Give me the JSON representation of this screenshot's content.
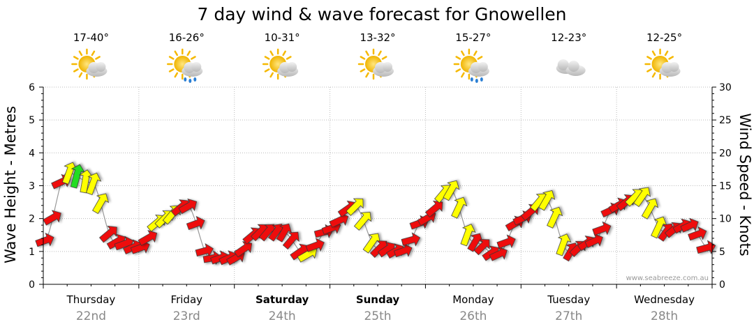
{
  "chart_data": {
    "type": "line",
    "title": "7 day wind & wave forecast for Gnowellen",
    "ylabel": "Wave Height - Metres",
    "y2label": "Wind Speed - Knots",
    "ylim": [
      0,
      6
    ],
    "y2lim": [
      0,
      30
    ],
    "yticks": [
      "0",
      "1",
      "2",
      "3",
      "4",
      "5",
      "6"
    ],
    "y2ticks": [
      "0",
      "5",
      "10",
      "15",
      "20",
      "25",
      "30"
    ],
    "days": [
      {
        "name": "Thursday",
        "date": "22nd",
        "temp": "17-40°",
        "weather": "partly-cloudy",
        "bold": false
      },
      {
        "name": "Friday",
        "date": "23rd",
        "temp": "16-26°",
        "weather": "showers",
        "bold": false
      },
      {
        "name": "Saturday",
        "date": "24th",
        "temp": "10-31°",
        "weather": "partly-cloudy",
        "bold": true
      },
      {
        "name": "Sunday",
        "date": "25th",
        "temp": "13-32°",
        "weather": "partly-cloudy",
        "bold": true
      },
      {
        "name": "Monday",
        "date": "26th",
        "temp": "15-27°",
        "weather": "showers",
        "bold": false
      },
      {
        "name": "Tuesday",
        "date": "27th",
        "temp": "12-23°",
        "weather": "cloudy",
        "bold": false
      },
      {
        "name": "Wednesday",
        "date": "28th",
        "temp": "12-25°",
        "weather": "partly-cloudy",
        "bold": false
      }
    ],
    "wind_color_thresholds": {
      "red_below": 12,
      "yellow_below": 19
    },
    "colors": {
      "red": "#ee1111",
      "yellow": "#ffff00",
      "green": "#22dd22",
      "grid": "#bbbbbb",
      "axis": "#000000",
      "series_line": "#999999"
    },
    "wave_height": {
      "x_days": [
        0.0,
        0.25,
        0.5,
        0.75,
        1.0,
        1.25,
        1.5,
        1.75,
        2.0,
        2.25,
        2.5,
        2.75,
        3.0,
        3.25,
        3.5,
        3.75,
        4.0,
        4.25,
        4.5,
        4.75,
        5.0,
        5.25,
        5.5,
        5.75,
        6.0,
        6.25,
        6.5,
        6.75,
        7.0
      ],
      "values": [
        1.3,
        3.4,
        3.1,
        1.3,
        1.1,
        2.0,
        2.4,
        0.8,
        0.8,
        1.6,
        1.6,
        0.9,
        1.7,
        2.4,
        1.1,
        1.0,
        2.0,
        2.9,
        1.3,
        0.9,
        2.0,
        2.6,
        1.0,
        1.3,
        2.4,
        2.7,
        1.6,
        1.8,
        1.0
      ]
    },
    "wind": {
      "x_days": [
        0.0,
        0.08,
        0.17,
        0.25,
        0.33,
        0.42,
        0.5,
        0.58,
        0.67,
        0.75,
        0.83,
        0.92,
        1.0,
        1.08,
        1.17,
        1.25,
        1.33,
        1.42,
        1.5,
        1.58,
        1.67,
        1.75,
        1.83,
        1.92,
        2.0,
        2.08,
        2.17,
        2.25,
        2.33,
        2.42,
        2.5,
        2.58,
        2.67,
        2.75,
        2.83,
        2.92,
        3.0,
        3.08,
        3.17,
        3.25,
        3.33,
        3.42,
        3.5,
        3.58,
        3.67,
        3.75,
        3.83,
        3.92,
        4.0,
        4.08,
        4.17,
        4.25,
        4.33,
        4.42,
        4.5,
        4.58,
        4.67,
        4.75,
        4.83,
        4.92,
        5.0,
        5.08,
        5.17,
        5.25,
        5.33,
        5.42,
        5.5,
        5.58,
        5.67,
        5.75,
        5.83,
        5.92,
        6.0,
        6.08,
        6.17,
        6.25,
        6.33,
        6.42,
        6.5,
        6.58,
        6.67,
        6.75,
        6.83,
        6.92
      ],
      "speed": [
        7,
        8,
        9,
        16,
        20,
        18,
        16,
        14,
        11,
        9,
        8,
        8,
        8,
        10,
        12,
        13,
        15,
        11,
        8,
        6,
        5,
        5,
        6,
        7,
        8,
        9,
        11,
        10,
        9,
        8,
        9,
        10,
        11,
        12,
        7,
        8,
        8,
        9,
        11,
        12,
        13,
        15,
        11,
        7,
        6,
        6,
        7,
        8,
        8,
        10,
        12,
        14,
        15,
        16,
        9,
        7,
        6,
        6,
        7,
        8,
        8,
        10,
        12,
        14,
        15,
        16,
        9,
        7,
        6,
        6,
        7,
        8,
        8,
        10,
        12,
        14,
        15,
        16,
        9,
        7,
        6,
        6,
        7,
        8
      ],
      "direction_deg": [
        250,
        240,
        245,
        200,
        195,
        190,
        200,
        210,
        230,
        240,
        250,
        245,
        250,
        240,
        230,
        225,
        220,
        230,
        240,
        250,
        255,
        260,
        250,
        245,
        240,
        235,
        230,
        225,
        220,
        215,
        210,
        220,
        235,
        240,
        250,
        255,
        250,
        245,
        235,
        225,
        220,
        215,
        225,
        235,
        240,
        250,
        255,
        250,
        240,
        230,
        220,
        210,
        205,
        200,
        210,
        225,
        235,
        245,
        250,
        240,
        245,
        230,
        220,
        210,
        205,
        200,
        210,
        225,
        235,
        245,
        250,
        245,
        240,
        230,
        225,
        215,
        210,
        205,
        215,
        230,
        240,
        245,
        250,
        255
      ]
    }
  },
  "watermark": "www.seabreeze.com.au"
}
